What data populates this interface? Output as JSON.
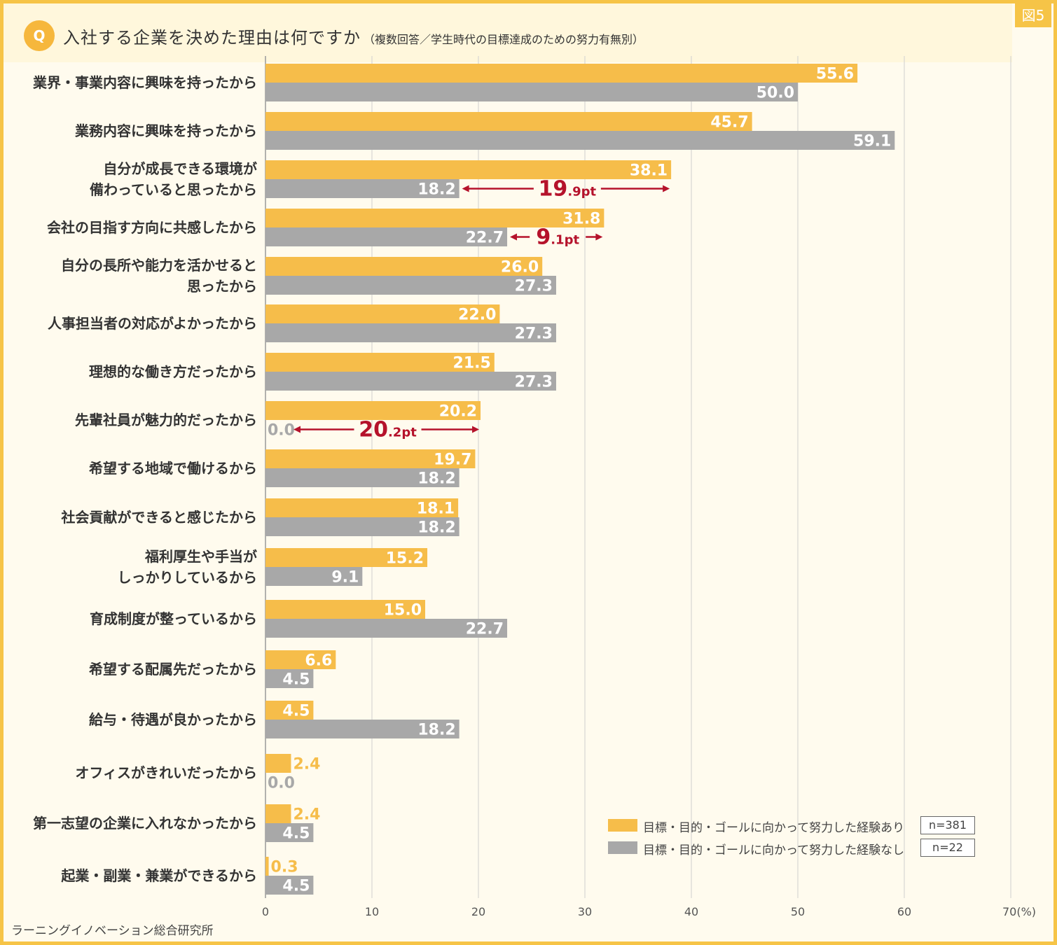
{
  "figure_label": "図5",
  "question_badge": "Q",
  "title": "入社する企業を決めた理由は何ですか",
  "subtitle": "（複数回答／学生時代の目標達成のための努力有無別）",
  "source": "ラーニングイノベーション総合研究所",
  "colors": {
    "series_yes": "#f6bd4a",
    "series_no": "#a8a8a8",
    "accent_red": "#b5122b",
    "grid": "#cfcfcf"
  },
  "chart_data": {
    "type": "bar",
    "orientation": "horizontal",
    "categories": [
      [
        "業界・事業内容に興味を持ったから"
      ],
      [
        "業務内容に興味を持ったから"
      ],
      [
        "自分が成長できる環境が",
        "備わっていると思ったから"
      ],
      [
        "会社の目指す方向に共感したから"
      ],
      [
        "自分の長所や能力を活かせると",
        "思ったから"
      ],
      [
        "人事担当者の対応がよかったから"
      ],
      [
        "理想的な働き方だったから"
      ],
      [
        "先輩社員が魅力的だったから"
      ],
      [
        "希望する地域で働けるから"
      ],
      [
        "社会貢献ができると感じたから"
      ],
      [
        "福利厚生や手当が",
        "しっかりしているから"
      ],
      [
        "育成制度が整っているから"
      ],
      [
        "希望する配属先だったから"
      ],
      [
        "給与・待遇が良かったから"
      ],
      [
        "オフィスがきれいだったから"
      ],
      [
        "第一志望の企業に入れなかったから"
      ],
      [
        "起業・副業・兼業ができるから"
      ]
    ],
    "series": [
      {
        "name": "目標・目的・ゴールに向かって努力した経験あり",
        "n": "n=381",
        "values": [
          55.6,
          45.7,
          38.1,
          31.8,
          26.0,
          22.0,
          21.5,
          20.2,
          19.7,
          18.1,
          15.2,
          15.0,
          6.6,
          4.5,
          2.4,
          2.4,
          0.3
        ]
      },
      {
        "name": "目標・目的・ゴールに向かって努力した経験なし",
        "n": "n=22",
        "values": [
          50.0,
          59.1,
          18.2,
          22.7,
          27.3,
          27.3,
          27.3,
          0.0,
          18.2,
          18.2,
          9.1,
          22.7,
          4.5,
          18.2,
          0.0,
          4.5,
          4.5
        ]
      }
    ],
    "xlim": [
      0,
      70
    ],
    "x_ticks": [
      "0",
      "10",
      "20",
      "30",
      "40",
      "50",
      "60",
      "70(%)"
    ],
    "grid": true,
    "legend_position": "bottom-right",
    "annotations": [
      {
        "category_index": 2,
        "from": 18.2,
        "to": 38.1,
        "big": "19",
        "small": ".9pt"
      },
      {
        "category_index": 3,
        "from": 22.7,
        "to": 31.8,
        "big": "9",
        "small": ".1pt"
      },
      {
        "category_index": 7,
        "from": 0.0,
        "to": 20.2,
        "big": "20",
        "small": ".2pt"
      }
    ]
  }
}
